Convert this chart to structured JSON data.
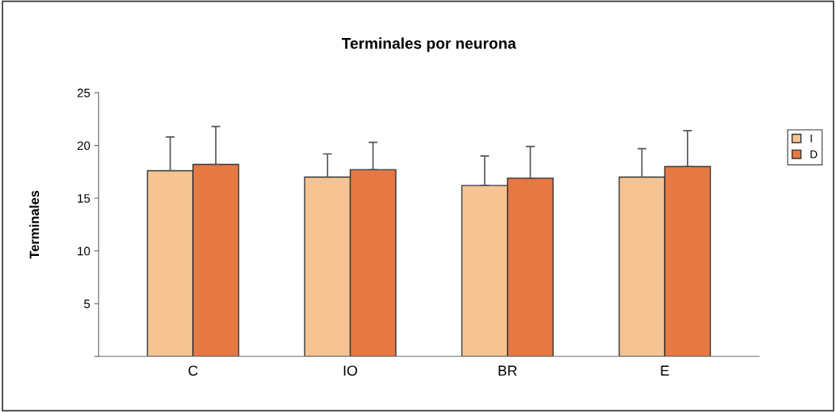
{
  "chart_data": {
    "type": "bar",
    "title": "Terminales por neurona",
    "ylabel": "Terminales",
    "categories": [
      "C",
      "IO",
      "BR",
      "E"
    ],
    "series": [
      {
        "name": "I",
        "color": "#f5c492",
        "values": [
          17.6,
          17.0,
          16.2,
          17.0
        ],
        "errors": [
          [
            17.6,
            20.8
          ],
          [
            17.0,
            19.2
          ],
          [
            16.2,
            19.0
          ],
          [
            17.0,
            19.7
          ]
        ]
      },
      {
        "name": "D",
        "color": "#e67843",
        "values": [
          18.2,
          17.7,
          16.9,
          18.0
        ],
        "errors": [
          [
            18.2,
            21.8
          ],
          [
            17.7,
            20.3
          ],
          [
            16.9,
            19.9
          ],
          [
            18.0,
            21.4
          ]
        ]
      }
    ],
    "ylim": [
      0,
      25
    ],
    "yticks": [
      {
        "value": 0,
        "label": null
      },
      5,
      10,
      15,
      20,
      25
    ],
    "grid": false,
    "legend": "right"
  }
}
